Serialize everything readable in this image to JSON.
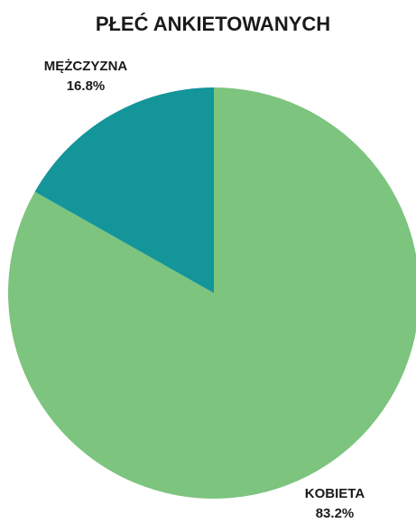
{
  "chart_data": {
    "type": "pie",
    "title": "PŁEĆ ANKIETOWANYCH",
    "slices": [
      {
        "label": "KOBIETA",
        "value": 83.2,
        "value_label": "83.2%",
        "color": "#7dc47f"
      },
      {
        "label": "MĘŻCZYZNA",
        "value": 16.8,
        "value_label": "16.8%",
        "color": "#14959a"
      }
    ],
    "start_angle": "12 o'clock",
    "direction": "clockwise",
    "legend": "none",
    "labels_position": "outside"
  }
}
